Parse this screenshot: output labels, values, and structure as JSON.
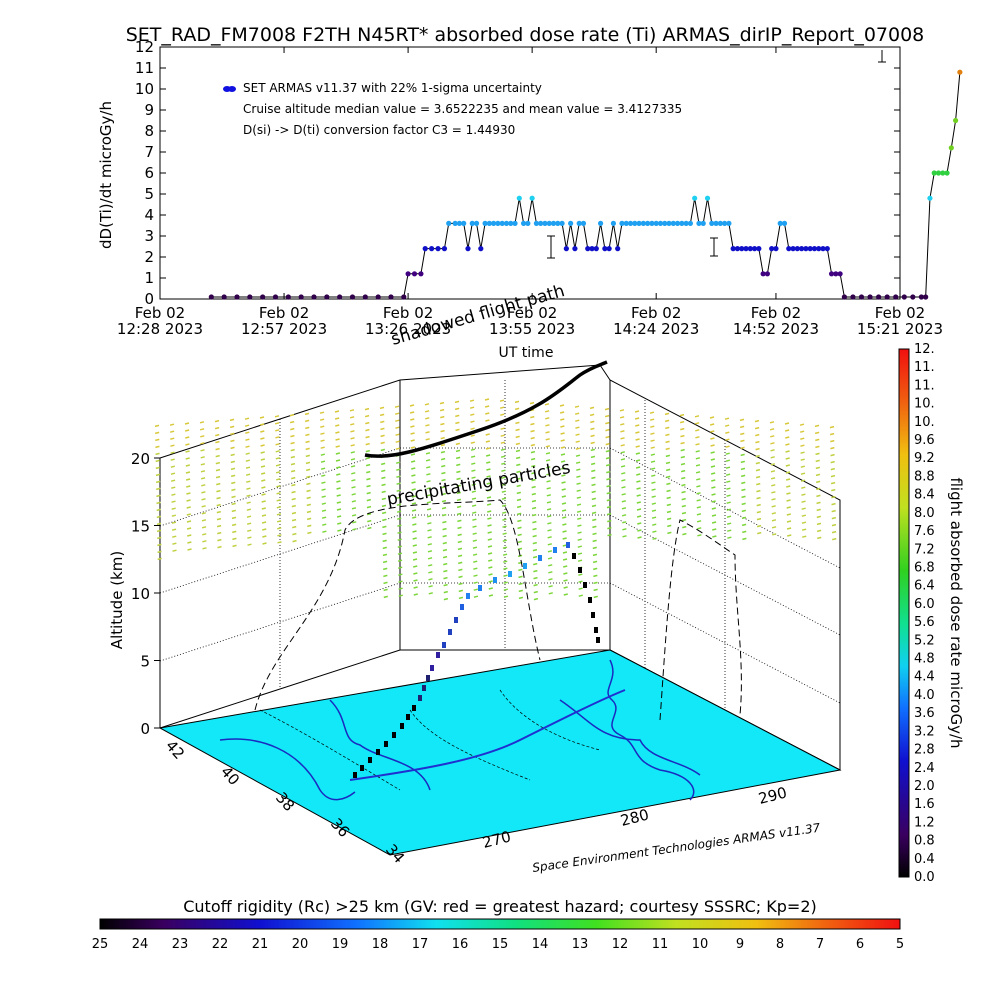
{
  "title": "SET_RAD_FM7008  F2TH N45RT* absorbed dose rate (Ti) ARMAS_dirIP_Report_07008",
  "chart_data": [
    {
      "type": "scatter",
      "ylabel": "dD(Ti)/dt microGy/h",
      "xlabel": "UT time",
      "ylim": [
        0,
        12
      ],
      "y_ticks": [
        "0",
        "1",
        "2",
        "3",
        "4",
        "5",
        "6",
        "7",
        "8",
        "9",
        "10",
        "11",
        "12"
      ],
      "x_ticks": [
        {
          "l1": "Feb 02",
          "l2": "12:28 2023"
        },
        {
          "l1": "Feb 02",
          "l2": "12:57 2023"
        },
        {
          "l1": "Feb 02",
          "l2": "13:26 2023"
        },
        {
          "l1": "Feb 02",
          "l2": "13:55 2023"
        },
        {
          "l1": "Feb 02",
          "l2": "14:24 2023"
        },
        {
          "l1": "Feb 02",
          "l2": "14:52 2023"
        },
        {
          "l1": "Feb 02",
          "l2": "15:21 2023"
        }
      ],
      "x_minutes_since_first_tick": [
        0,
        29,
        58,
        87,
        116,
        144,
        173
      ],
      "legend": [
        "SET ARMAS v11.37 with 22% 1-sigma uncertainty",
        "Cruise altitude median value = 3.6522235 and mean value = 3.4127335",
        "D(si) -> D(ti) conversion factor C3 = 1.44930"
      ],
      "series": [
        {
          "marker_color": "#1010e0",
          "points": [
            [
              12,
              0
            ],
            [
              15,
              0
            ],
            [
              18,
              0
            ],
            [
              21,
              0
            ],
            [
              24,
              0
            ],
            [
              27,
              0
            ],
            [
              30,
              0
            ],
            [
              33,
              0
            ],
            [
              36,
              0
            ],
            [
              39,
              0
            ],
            [
              42,
              0
            ],
            [
              45,
              0
            ],
            [
              48,
              0
            ],
            [
              51,
              0
            ],
            [
              54,
              0
            ],
            [
              57,
              0
            ],
            [
              58,
              1.2
            ],
            [
              59.5,
              1.2
            ],
            [
              61,
              1.2
            ],
            [
              62,
              2.4
            ],
            [
              63.5,
              2.4
            ],
            [
              65,
              2.4
            ],
            [
              66.5,
              2.4
            ],
            [
              67.5,
              3.6
            ],
            [
              69,
              3.6
            ],
            [
              70,
              3.6
            ],
            [
              71,
              3.6
            ],
            [
              72,
              2.4
            ],
            [
              73,
              3.6
            ],
            [
              74,
              3.6
            ],
            [
              75,
              2.4
            ],
            [
              76,
              3.6
            ],
            [
              77,
              3.6
            ],
            [
              78,
              3.6
            ],
            [
              79,
              3.6
            ],
            [
              80,
              3.6
            ],
            [
              81,
              3.6
            ],
            [
              82,
              3.6
            ],
            [
              83,
              3.6
            ],
            [
              84,
              4.8
            ],
            [
              85,
              3.6
            ],
            [
              86,
              3.6
            ],
            [
              87,
              4.8
            ],
            [
              88,
              3.6
            ],
            [
              89,
              3.6
            ],
            [
              90,
              3.6
            ],
            [
              91,
              3.6
            ],
            [
              92,
              3.6
            ],
            [
              93,
              3.6
            ],
            [
              94,
              3.6
            ],
            [
              95,
              2.4
            ],
            [
              96,
              3.6
            ],
            [
              97,
              2.4
            ],
            [
              98,
              3.6
            ],
            [
              99,
              3.6
            ],
            [
              100,
              2.4
            ],
            [
              101,
              2.4
            ],
            [
              102,
              2.4
            ],
            [
              103,
              3.6
            ],
            [
              104,
              2.4
            ],
            [
              105,
              2.4
            ],
            [
              106,
              3.6
            ],
            [
              107,
              2.4
            ],
            [
              108,
              3.6
            ],
            [
              109,
              3.6
            ],
            [
              110,
              3.6
            ],
            [
              111,
              3.6
            ],
            [
              112,
              3.6
            ],
            [
              113,
              3.6
            ],
            [
              114,
              3.6
            ],
            [
              115,
              3.6
            ],
            [
              116,
              3.6
            ],
            [
              117,
              3.6
            ],
            [
              118,
              3.6
            ],
            [
              119,
              3.6
            ],
            [
              120,
              3.6
            ],
            [
              121,
              3.6
            ],
            [
              122,
              3.6
            ],
            [
              123,
              3.6
            ],
            [
              124,
              3.6
            ],
            [
              125,
              4.8
            ],
            [
              126,
              3.6
            ],
            [
              127,
              3.6
            ],
            [
              128,
              4.8
            ],
            [
              129,
              3.6
            ],
            [
              130,
              3.6
            ],
            [
              131,
              3.6
            ],
            [
              132,
              3.6
            ],
            [
              133,
              3.6
            ],
            [
              134,
              2.4
            ],
            [
              135,
              2.4
            ],
            [
              136,
              2.4
            ],
            [
              137,
              2.4
            ],
            [
              138,
              2.4
            ],
            [
              139,
              2.4
            ],
            [
              140,
              2.4
            ],
            [
              141,
              1.2
            ],
            [
              142,
              1.2
            ],
            [
              143,
              2.4
            ],
            [
              144,
              2.4
            ],
            [
              145,
              3.6
            ],
            [
              146,
              3.6
            ],
            [
              147,
              2.4
            ],
            [
              148,
              2.4
            ],
            [
              149,
              2.4
            ],
            [
              150,
              2.4
            ],
            [
              151,
              2.4
            ],
            [
              152,
              2.4
            ],
            [
              153,
              2.4
            ],
            [
              154,
              2.4
            ],
            [
              155,
              2.4
            ],
            [
              156,
              2.4
            ],
            [
              157,
              1.2
            ],
            [
              158,
              1.2
            ],
            [
              159,
              1.2
            ],
            [
              160,
              0
            ],
            [
              162,
              0
            ],
            [
              164,
              0
            ],
            [
              166,
              0
            ],
            [
              168,
              0
            ],
            [
              170,
              0
            ],
            [
              172,
              0
            ],
            [
              174,
              0
            ],
            [
              176,
              0
            ],
            [
              178,
              0
            ],
            [
              179,
              0
            ],
            [
              180,
              4.8
            ],
            [
              181,
              6.0
            ],
            [
              182,
              6.0
            ],
            [
              183,
              6.0
            ],
            [
              184,
              6.0
            ],
            [
              185,
              7.2
            ],
            [
              186,
              8.5
            ],
            [
              187,
              10.8
            ]
          ]
        }
      ]
    },
    {
      "type": "scatter",
      "title": "",
      "ylabel": "Altitude (km)",
      "ylim": [
        0,
        20
      ],
      "z_ticks": [
        "0",
        "5",
        "10",
        "15",
        "20"
      ],
      "lat_ticks": [
        "42",
        "40",
        "38",
        "36",
        "34"
      ],
      "lon_ticks": [
        "270",
        "280",
        "290"
      ],
      "annotations": [
        "shadowed flight path",
        "precipitating particles",
        "Space Environment Technologies ARMAS v11.37"
      ],
      "colorbar": {
        "label": "flight absorbed dose rate microGy/h",
        "ticks": [
          "0.0",
          "0.4",
          "0.8",
          "1.2",
          "1.6",
          "2.0",
          "2.4",
          "2.8",
          "3.2",
          "3.6",
          "4.0",
          "4.4",
          "4.8",
          "5.2",
          "5.6",
          "6.0",
          "6.4",
          "6.8",
          "7.2",
          "7.6",
          "8.0",
          "8.4",
          "8.8",
          "9.2",
          "9.6",
          "10.",
          "10.",
          "11.",
          "11.",
          "12."
        ]
      }
    },
    {
      "type": "heatmap",
      "title": "Cutoff rigidity (Rc) >25 km (GV: red = greatest hazard; courtesy SSSRC; Kp=2)",
      "ticks": [
        "25",
        "24",
        "23",
        "22",
        "21",
        "20",
        "19",
        "18",
        "17",
        "16",
        "15",
        "14",
        "13",
        "12",
        "11",
        "10",
        "9",
        "8",
        "7",
        "6",
        "5"
      ]
    }
  ],
  "colors": {
    "map_fill": "#12e8f8",
    "flight_dark": "#000000",
    "marker_blue": "#1010e0",
    "marker_cyan": "#20d0f0",
    "particles_green": "#7cd63a",
    "particles_yellow": "#d8c83a"
  }
}
